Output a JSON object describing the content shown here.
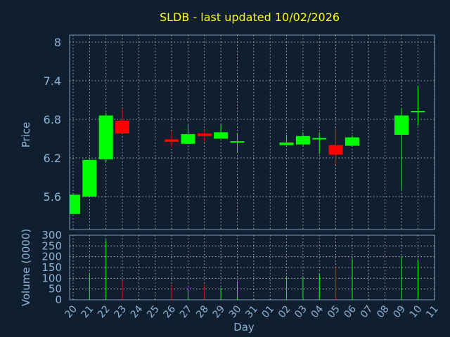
{
  "title": "SLDB - last updated 10/02/2026",
  "colors": {
    "background": "#0f1f30",
    "up": "#00ff00",
    "down": "#ff0000",
    "title": "#ffff00",
    "axis_text": "#8cb4d6",
    "frame": "#7d98b3"
  },
  "chart_data": [
    {
      "type": "candlestick",
      "ylabel": "Price",
      "ylim": [
        5.2,
        8.1
      ],
      "yticks": [
        "5.6",
        "6.2",
        "6.8",
        "7.4",
        "8"
      ],
      "grid": true,
      "categories": [
        "20",
        "21",
        "22",
        "23",
        "24",
        "25",
        "26",
        "27",
        "28",
        "29",
        "30",
        "31",
        "01",
        "02",
        "03",
        "04",
        "05",
        "06",
        "07",
        "08",
        "09",
        "10",
        "11"
      ],
      "candles": [
        {
          "x": "20",
          "open": 5.33,
          "close": 5.63,
          "high": 5.63,
          "low": 5.33
        },
        {
          "x": "21",
          "open": 5.6,
          "close": 6.17,
          "high": 6.17,
          "low": 5.6
        },
        {
          "x": "22",
          "open": 6.18,
          "close": 6.86,
          "high": 6.9,
          "low": 6.13
        },
        {
          "x": "23",
          "open": 6.78,
          "close": 6.58,
          "high": 6.97,
          "low": 6.58
        },
        {
          "x": "26",
          "open": 6.49,
          "close": 6.45,
          "high": 6.62,
          "low": 6.36
        },
        {
          "x": "27",
          "open": 6.42,
          "close": 6.57,
          "high": 6.73,
          "low": 6.42
        },
        {
          "x": "28",
          "open": 6.58,
          "close": 6.54,
          "high": 6.65,
          "low": 6.44
        },
        {
          "x": "29",
          "open": 6.5,
          "close": 6.6,
          "high": 6.72,
          "low": 6.5
        },
        {
          "x": "30",
          "open": 6.45,
          "close": 6.46,
          "high": 6.59,
          "low": 6.29
        },
        {
          "x": "02",
          "open": 6.4,
          "close": 6.44,
          "high": 6.56,
          "low": 6.4
        },
        {
          "x": "03",
          "open": 6.41,
          "close": 6.54,
          "high": 6.6,
          "low": 6.39
        },
        {
          "x": "04",
          "open": 6.49,
          "close": 6.51,
          "high": 6.6,
          "low": 6.26
        },
        {
          "x": "05",
          "open": 6.4,
          "close": 6.25,
          "high": 6.66,
          "low": 6.1
        },
        {
          "x": "06",
          "open": 6.39,
          "close": 6.52,
          "high": 6.55,
          "low": 6.39
        },
        {
          "x": "09",
          "open": 6.56,
          "close": 6.86,
          "high": 6.98,
          "low": 5.71
        },
        {
          "x": "10",
          "open": 6.92,
          "close": 6.93,
          "high": 7.32,
          "low": 6.7
        }
      ]
    },
    {
      "type": "bar",
      "ylabel": "Volume (0000)",
      "xlabel": "Day",
      "ylim": [
        0,
        300
      ],
      "yticks": [
        "0",
        "50",
        "100",
        "150",
        "200",
        "250",
        "300"
      ],
      "grid": true,
      "categories": [
        "20",
        "21",
        "22",
        "23",
        "24",
        "25",
        "26",
        "27",
        "28",
        "29",
        "30",
        "31",
        "01",
        "02",
        "03",
        "04",
        "05",
        "06",
        "07",
        "08",
        "09",
        "10",
        "11"
      ],
      "bars": [
        {
          "x": "21",
          "value": 125,
          "direction": "up"
        },
        {
          "x": "22",
          "value": 278,
          "direction": "up"
        },
        {
          "x": "23",
          "value": 90,
          "direction": "down"
        },
        {
          "x": "26",
          "value": 70,
          "direction": "down"
        },
        {
          "x": "27",
          "value": 50,
          "direction": "up"
        },
        {
          "x": "28",
          "value": 70,
          "direction": "down"
        },
        {
          "x": "29",
          "value": 55,
          "direction": "up"
        },
        {
          "x": "30",
          "value": 85,
          "direction": "up"
        },
        {
          "x": "02",
          "value": 110,
          "direction": "up"
        },
        {
          "x": "03",
          "value": 105,
          "direction": "up"
        },
        {
          "x": "04",
          "value": 120,
          "direction": "up"
        },
        {
          "x": "05",
          "value": 150,
          "direction": "down"
        },
        {
          "x": "06",
          "value": 190,
          "direction": "up"
        },
        {
          "x": "09",
          "value": 200,
          "direction": "up"
        },
        {
          "x": "10",
          "value": 185,
          "direction": "up"
        }
      ]
    }
  ]
}
